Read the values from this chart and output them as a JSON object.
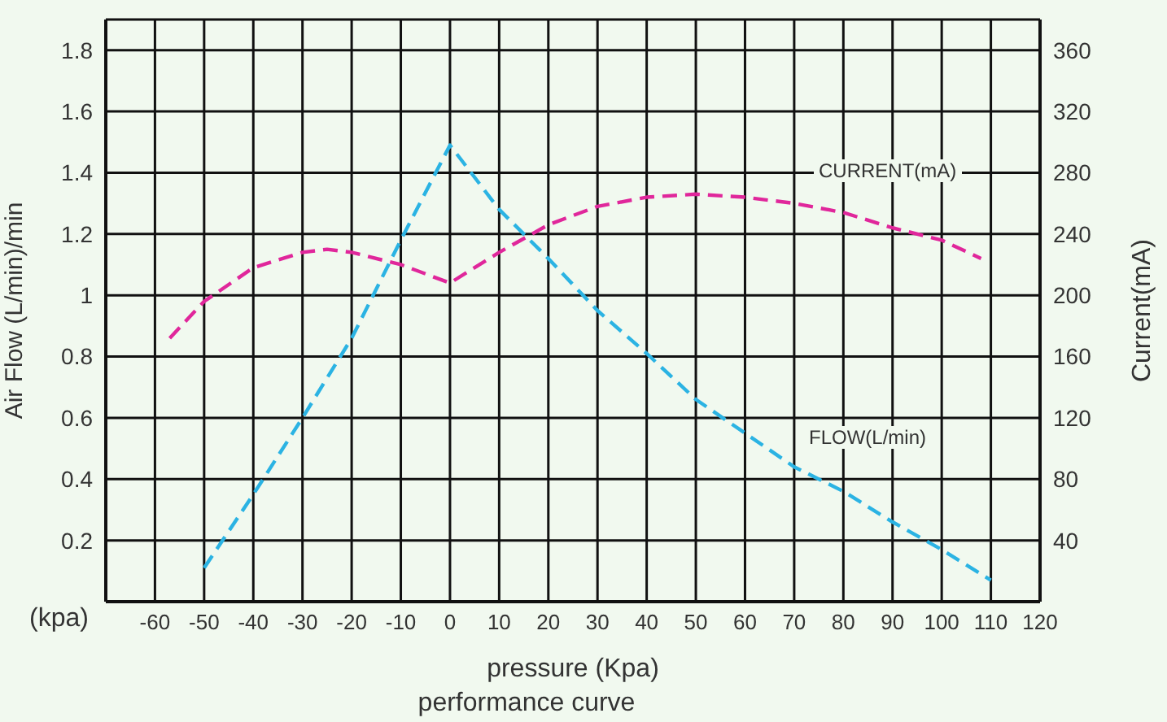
{
  "chart_data": {
    "type": "line",
    "title": "performance curve",
    "xlabel": "pressure (Kpa)",
    "ylabel": "Air Flow (L/min)/min",
    "y2label": "Current(mA)",
    "annotations": [
      "(kpa)",
      "CURRENT(mA)",
      "FLOW(L/min)"
    ],
    "xlim": [
      -70,
      120
    ],
    "xticks": [
      -60,
      -50,
      -40,
      -30,
      -20,
      -10,
      0,
      10,
      20,
      30,
      40,
      50,
      60,
      70,
      80,
      90,
      100,
      110,
      120
    ],
    "ylim": [
      0,
      1.9
    ],
    "yticks": [
      0.2,
      0.4,
      0.6,
      0.8,
      1.0,
      1.2,
      1.4,
      1.6,
      1.8
    ],
    "y2lim": [
      0,
      380
    ],
    "y2ticks": [
      40,
      80,
      120,
      160,
      200,
      240,
      280,
      320,
      360
    ],
    "grid": true,
    "marker": "none",
    "line_style": "dashed",
    "series": [
      {
        "color": "#2bb3e3",
        "x": [
          -50,
          -40,
          -30,
          -20,
          -10,
          0,
          10,
          20,
          30,
          40,
          50,
          60,
          70,
          80,
          90,
          100,
          110
        ],
        "values": [
          0.11,
          0.35,
          0.6,
          0.86,
          1.18,
          1.49,
          1.28,
          1.12,
          0.95,
          0.81,
          0.66,
          0.55,
          0.44,
          0.36,
          0.26,
          0.17,
          0.07
        ]
      },
      {
        "color": "#e0279b",
        "axis": "y2",
        "x": [
          -57,
          -50,
          -40,
          -30,
          -25,
          -20,
          -10,
          0,
          10,
          20,
          30,
          40,
          50,
          60,
          70,
          80,
          90,
          100,
          108
        ],
        "values": [
          172,
          196,
          218,
          228,
          230,
          228,
          220,
          208,
          228,
          246,
          258,
          264,
          266,
          264,
          260,
          254,
          244,
          236,
          224
        ]
      }
    ]
  }
}
